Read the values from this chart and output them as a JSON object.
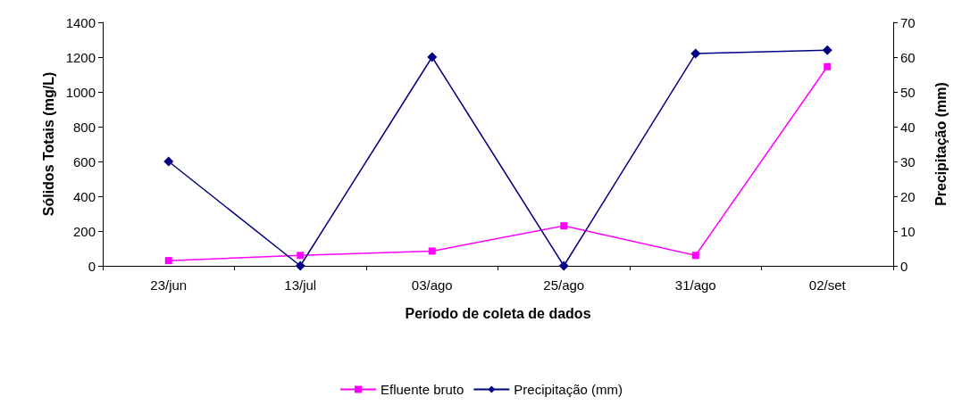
{
  "chart_data": {
    "type": "line",
    "xlabel": "Período de coleta de dados",
    "ylabel": "Sólidos Totais (mg/L)",
    "y2label": "Precipitação (mm)",
    "categories": [
      "23/jun",
      "13/jul",
      "03/ago",
      "25/ago",
      "31/ago",
      "02/set"
    ],
    "series": [
      {
        "name": "Efluente bruto",
        "color": "#ff00ff",
        "marker": "square",
        "values": [
          30,
          60,
          85,
          230,
          60,
          1145
        ]
      },
      {
        "name": "Precipitação (mm)",
        "color": "#000080",
        "marker": "diamond",
        "axis": "y2",
        "values": [
          30,
          0,
          60,
          0,
          61,
          62
        ]
      }
    ],
    "ylim": [
      0,
      1400
    ],
    "yticks": [
      0,
      200,
      400,
      600,
      800,
      1000,
      1200,
      1400
    ],
    "y2lim": [
      0,
      70
    ],
    "y2ticks": [
      0,
      10,
      20,
      30,
      40,
      50,
      60,
      70
    ],
    "grid": false,
    "legend": "bottom"
  }
}
